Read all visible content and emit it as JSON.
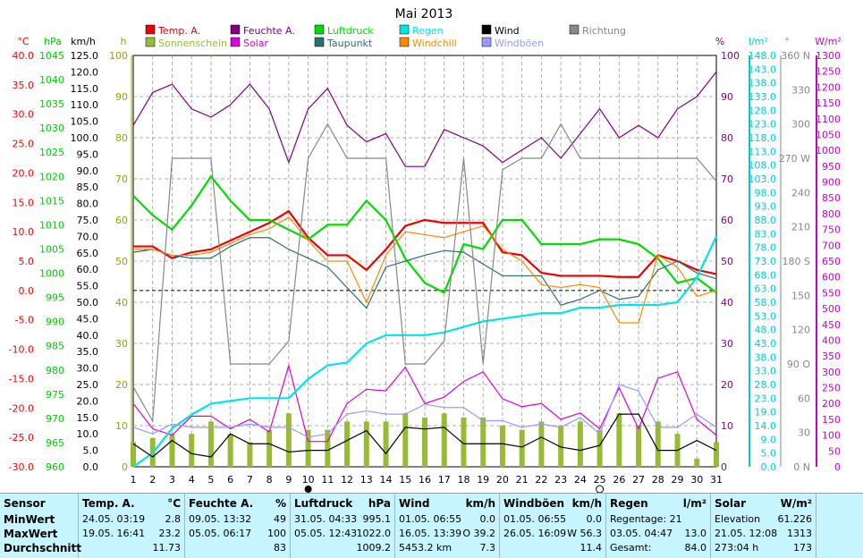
{
  "chart_data": {
    "type": "line",
    "title": "Mai 2013",
    "x": [
      1,
      2,
      3,
      4,
      5,
      6,
      7,
      8,
      9,
      10,
      11,
      12,
      13,
      14,
      15,
      16,
      17,
      18,
      19,
      20,
      21,
      22,
      23,
      24,
      25,
      26,
      27,
      28,
      29,
      30,
      31
    ],
    "xlim": [
      1,
      31
    ],
    "moon_markers": {
      "full": 10,
      "new": 25
    },
    "grid": true,
    "legend_placement": "top",
    "axes": [
      {
        "label": "°C",
        "color": "#ff0000",
        "min": -30,
        "max": 40,
        "ticks": [
          "40.0",
          "35.0",
          "30.0",
          "25.0",
          "20.0",
          "15.0",
          "10.0",
          "5.0",
          "0.0",
          "-5.0",
          "-10.0",
          "-15.0",
          "-20.0",
          "-25.0",
          "-30.0"
        ]
      },
      {
        "label": "hPa",
        "color": "#00cc00",
        "min": 960,
        "max": 1045,
        "ticks": [
          "1045",
          "1040",
          "1035",
          "1030",
          "1025",
          "1020",
          "1015",
          "1010",
          "1005",
          "1000",
          "995",
          "990",
          "985",
          "980",
          "975",
          "970",
          "965",
          "960"
        ]
      },
      {
        "label": "km/h",
        "color": "#000000",
        "min": 0,
        "max": 125,
        "ticks": [
          "125.0",
          "120.0",
          "115.0",
          "110.0",
          "105.0",
          "100.0",
          "95.0",
          "90.0",
          "85.0",
          "80.0",
          "75.0",
          "70.0",
          "65.0",
          "60.0",
          "55.0",
          "50.0",
          "45.0",
          "40.0",
          "35.0",
          "30.0",
          "25.0",
          "20.0",
          "15.0",
          "10.0",
          "5.0",
          "0.0"
        ]
      },
      {
        "label": "h",
        "color": "#88aa00",
        "min": 0,
        "max": 100,
        "ticks": [
          "100",
          "90",
          "80",
          "70",
          "60",
          "50",
          "40",
          "30",
          "20",
          "10",
          "0"
        ]
      },
      {
        "label": "%",
        "color": "#7a007a",
        "min": 0,
        "max": 100,
        "ticks": [
          "100",
          "90",
          "80",
          "70",
          "60",
          "50",
          "40",
          "30",
          "20",
          "10",
          "0"
        ]
      },
      {
        "label": "l/m²",
        "color": "#00cccc",
        "min": 0,
        "max": 150,
        "ticks": [
          "148.0",
          "143.0",
          "138.0",
          "133.0",
          "128.0",
          "123.0",
          "118.0",
          "113.0",
          "108.0",
          "103.0",
          "98.0",
          "93.0",
          "88.0",
          "83.0",
          "78.0",
          "73.0",
          "68.0",
          "63.0",
          "58.0",
          "53.0",
          "48.0",
          "43.0",
          "38.0",
          "33.0",
          "28.0",
          "23.0",
          "19.0",
          "14.0",
          "9.0",
          "5.0",
          "0.0"
        ]
      },
      {
        "label": "°",
        "color": "#888888",
        "min": 0,
        "max": 360,
        "ticks": [
          "360 N",
          "330",
          "300",
          "270 W",
          "240",
          "210",
          "180 S",
          "150",
          "120",
          "90 O",
          "60",
          "30",
          "0 N"
        ]
      },
      {
        "label": "W/m²",
        "color": "#cc00cc",
        "min": 0,
        "max": 1300,
        "ticks": [
          "1300",
          "1250",
          "1200",
          "1150",
          "1100",
          "1050",
          "1000",
          "950",
          "900",
          "850",
          "800",
          "750",
          "700",
          "650",
          "600",
          "550",
          "500",
          "450",
          "400",
          "350",
          "300",
          "250",
          "200",
          "150",
          "100",
          "50",
          "0"
        ]
      }
    ],
    "series": [
      {
        "name": "Temp. A.",
        "color": "#ee0000",
        "axis": 0,
        "values": [
          7.5,
          7.5,
          5.5,
          6.5,
          7,
          8.5,
          10,
          11.5,
          13.5,
          9,
          6,
          6,
          3.5,
          7,
          11,
          12,
          11.5,
          11.5,
          11.5,
          6.5,
          6,
          3,
          2.5,
          2.5,
          2.5,
          2.3,
          2.3,
          6,
          5,
          3.5,
          2.8
        ]
      },
      {
        "name": "Sonnenschein",
        "color": "#99bb33",
        "axis": 3,
        "bar": true,
        "values": [
          6,
          7,
          8,
          8,
          11,
          8,
          6,
          9,
          13,
          9,
          9,
          11,
          11,
          11,
          13,
          12,
          13,
          12,
          12,
          10,
          9,
          11,
          10,
          11,
          9,
          13,
          10,
          11,
          8,
          2,
          6
        ]
      },
      {
        "name": "Feuchte A.",
        "color": "#800080",
        "axis": 4,
        "values": [
          83,
          91,
          93,
          87,
          85,
          88,
          93,
          87,
          74,
          87,
          92,
          83,
          79,
          81,
          73,
          73,
          82,
          80,
          78,
          74,
          77,
          80,
          75,
          81,
          87,
          80,
          83,
          80,
          87,
          90,
          96
        ]
      },
      {
        "name": "Solar",
        "color": "#dd00dd",
        "axis": 7,
        "values": [
          200,
          120,
          100,
          160,
          160,
          120,
          150,
          110,
          320,
          80,
          80,
          200,
          245,
          240,
          315,
          200,
          220,
          270,
          300,
          215,
          190,
          200,
          150,
          170,
          120,
          250,
          120,
          280,
          300,
          150,
          100
        ]
      },
      {
        "name": "Luftdruck",
        "color": "#00dd00",
        "axis": 1,
        "values": [
          1016,
          1012,
          1009,
          1014,
          1020,
          1015,
          1011,
          1011,
          1009,
          1007,
          1010,
          1010,
          1015,
          1011,
          1003,
          998,
          996,
          1006,
          1005,
          1011,
          1011,
          1006,
          1006,
          1006,
          1007,
          1007,
          1006,
          1003,
          998,
          999,
          996
        ]
      },
      {
        "name": "Taupunkt",
        "color": "#2e6e6e",
        "axis": 0,
        "values": [
          6.5,
          7,
          6,
          5.5,
          5.5,
          7.5,
          9,
          9,
          7,
          5.5,
          4,
          0.5,
          -3,
          4,
          5,
          6,
          6.8,
          6.5,
          4.5,
          2.5,
          2.5,
          2.5,
          -2.5,
          -1.5,
          0,
          -1.5,
          -1,
          3.5,
          5,
          3,
          2
        ]
      },
      {
        "name": "Regen",
        "color": "#00e5e5",
        "axis": 5,
        "values": [
          0,
          5,
          14,
          19,
          23,
          24,
          25,
          25,
          25,
          32,
          37,
          38,
          45,
          48,
          48,
          48,
          49,
          51,
          53,
          54,
          55,
          56,
          56,
          58,
          58,
          59,
          59,
          59,
          60,
          69,
          84
        ]
      },
      {
        "name": "Windchill",
        "color": "#ff8800",
        "axis": 0,
        "values": [
          7,
          7,
          6,
          6,
          6.5,
          8,
          9.5,
          10.5,
          12.5,
          8.5,
          5,
          5,
          -2,
          6,
          10,
          9.5,
          9,
          10,
          11,
          7,
          5,
          1,
          0.5,
          1,
          0.5,
          -5.5,
          -5.5,
          6,
          4,
          -1,
          0
        ]
      },
      {
        "name": "Wind",
        "color": "#000000",
        "axis": 2,
        "values": [
          7,
          3,
          8,
          4,
          3,
          10,
          7,
          7,
          4.5,
          5,
          5,
          8,
          11,
          4,
          12,
          11.5,
          12,
          7,
          7,
          7,
          6,
          9,
          6,
          5,
          6.5,
          16,
          16,
          5,
          5,
          8,
          5
        ]
      },
      {
        "name": "Windböen",
        "color": "#9999ff",
        "axis": 2,
        "values": [
          12,
          10,
          13,
          12,
          12,
          12,
          13,
          12,
          12,
          9,
          10,
          16,
          17,
          16,
          16,
          19,
          18,
          18,
          14,
          14,
          12,
          13,
          12,
          15,
          10,
          25,
          23,
          12,
          12,
          16,
          12
        ]
      },
      {
        "name": "Richtung",
        "color": "#888888",
        "axis": 6,
        "values": [
          70,
          40,
          270,
          270,
          270,
          90,
          90,
          90,
          110,
          270,
          300,
          270,
          270,
          270,
          90,
          90,
          110,
          270,
          90,
          260,
          270,
          270,
          300,
          270,
          270,
          270,
          270,
          270,
          270,
          270,
          250
        ]
      }
    ],
    "reference_line": {
      "axis": 0,
      "value": 0,
      "style": "dashed"
    }
  },
  "stats": {
    "headers": {
      "sensor": "Sensor",
      "temp": "Temp. A.",
      "temp_unit": "°C",
      "feuchte": "Feuchte A.",
      "feuchte_unit": "%",
      "luftdruck": "Luftdruck",
      "luftdruck_unit": "hPa",
      "wind": "Wind",
      "wind_unit": "km/h",
      "boeen": "Windböen",
      "boeen_unit": "km/h",
      "regen": "Regen",
      "regen_unit": "l/m²",
      "solar": "Solar",
      "solar_unit": "W/m²"
    },
    "labels": {
      "min": "MinWert",
      "max": "MaxWert",
      "avg": "Durchschnitt"
    },
    "temp": {
      "min_date": "24.05.  03:19",
      "min_val": "2.8",
      "max_date": "19.05.  16:41",
      "max_val": "23.2",
      "avg": "11.73"
    },
    "feuchte": {
      "min_date": "09.05.  13:32",
      "min_val": "49",
      "max_date": "05.05.  06:17",
      "max_val": "100",
      "avg": "83"
    },
    "luftdruck": {
      "min_date": "31.05.  04:33",
      "min_val": "995.1",
      "max_date": "05.05.  12:43",
      "max_val": "1022.0",
      "avg": "1009.2"
    },
    "wind": {
      "min_date": "01.05.  06:55",
      "min_val": "0.0",
      "max_date": "16.05.  13:39",
      "max_val": "O 39.2",
      "avg_extra": "5453.2 km",
      "avg": "7.3"
    },
    "boeen": {
      "min_date": "01.05.  06:55",
      "min_val": "0.0",
      "max_date": "26.05.  16:09",
      "max_val": "W 56.3",
      "avg": "11.4"
    },
    "regen": {
      "r1_label": "Regentage: 21",
      "r2_label": "03.05.  04:47",
      "r2_val": "13.0",
      "r3_label": "Gesamt:",
      "r3_val": "84.0"
    },
    "solar": {
      "r1_label": "Elevation",
      "r1_val": "61.226",
      "r2_label": "21.05.  12:08",
      "r2_val": "1313",
      "r3_label": "273:04 h",
      "r3_val": "173"
    }
  }
}
